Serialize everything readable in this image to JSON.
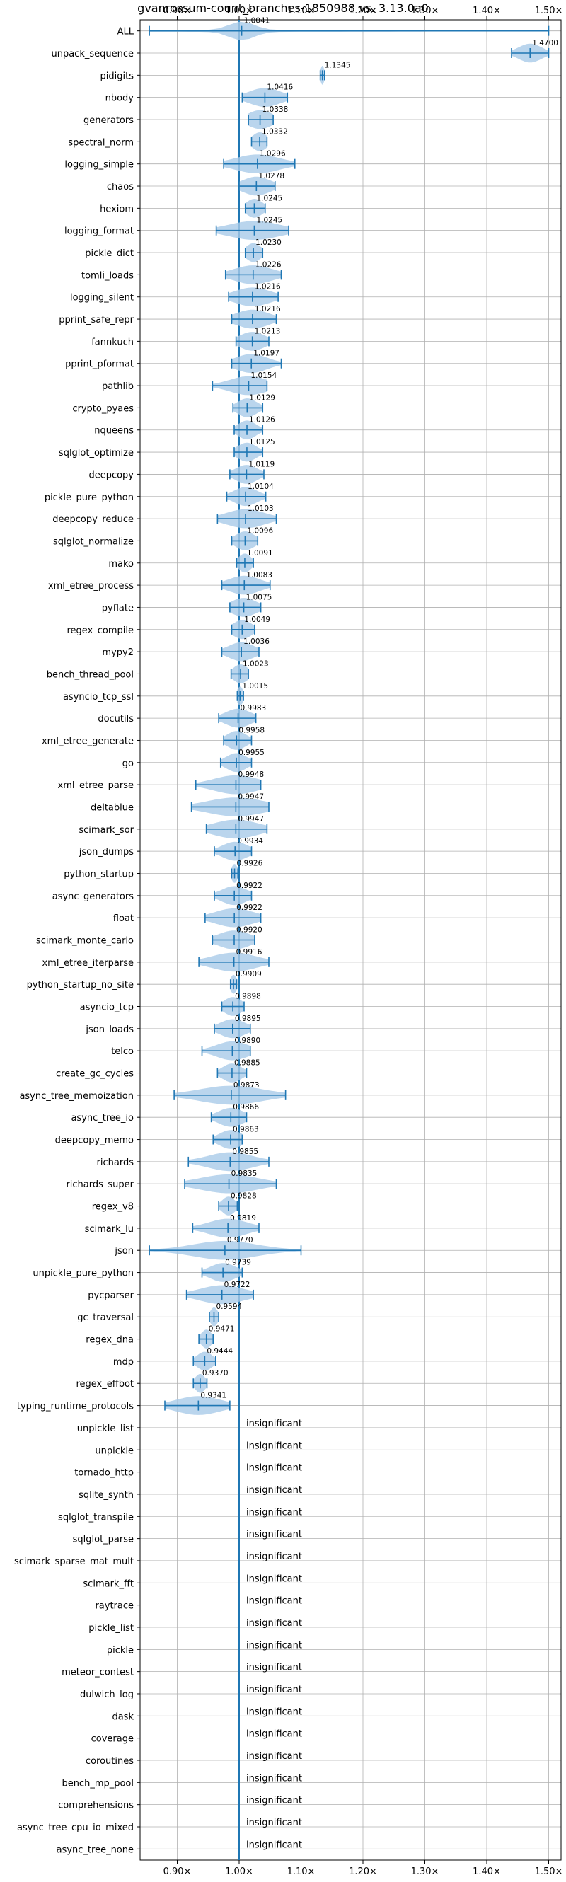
{
  "chart_data": {
    "type": "violin",
    "title": "gvanrossum-count_branches-1850988 vs. 3.13.0a0",
    "xlabel": "",
    "ylabel": "",
    "xlim": [
      0.84,
      1.52
    ],
    "xticks": [
      0.9,
      1.0,
      1.1,
      1.2,
      1.3,
      1.4,
      1.5
    ],
    "xtick_labels": [
      "0.90×",
      "1.00×",
      "1.10×",
      "1.20×",
      "1.30×",
      "1.40×",
      "1.50×"
    ],
    "reference_line": 1.0,
    "grid": true,
    "insignificant_label": "insignificant",
    "benchmarks": [
      {
        "name": "ALL",
        "mean": 1.0041,
        "label": "1.0041",
        "min": 0.855,
        "max": 1.5,
        "spread": 0.02
      },
      {
        "name": "unpack_sequence",
        "mean": 1.47,
        "label": "1.4700",
        "min": 1.44,
        "max": 1.5,
        "spread": 0.018
      },
      {
        "name": "pidigits",
        "mean": 1.1345,
        "label": "1.1345",
        "min": 1.131,
        "max": 1.138,
        "spread": 0.003
      },
      {
        "name": "nbody",
        "mean": 1.0416,
        "label": "1.0416",
        "min": 1.005,
        "max": 1.078,
        "spread": 0.025
      },
      {
        "name": "generators",
        "mean": 1.0338,
        "label": "1.0338",
        "min": 1.015,
        "max": 1.055,
        "spread": 0.02
      },
      {
        "name": "spectral_norm",
        "mean": 1.0332,
        "label": "1.0332",
        "min": 1.02,
        "max": 1.045,
        "spread": 0.012
      },
      {
        "name": "logging_simple",
        "mean": 1.0296,
        "label": "1.0296",
        "min": 0.975,
        "max": 1.09,
        "spread": 0.035
      },
      {
        "name": "chaos",
        "mean": 1.0278,
        "label": "1.0278",
        "min": 1.0,
        "max": 1.058,
        "spread": 0.022
      },
      {
        "name": "hexiom",
        "mean": 1.0245,
        "label": "1.0245",
        "min": 1.01,
        "max": 1.042,
        "spread": 0.013
      },
      {
        "name": "logging_format",
        "mean": 1.0245,
        "label": "1.0245",
        "min": 0.963,
        "max": 1.08,
        "spread": 0.04
      },
      {
        "name": "pickle_dict",
        "mean": 1.023,
        "label": "1.0230",
        "min": 1.01,
        "max": 1.038,
        "spread": 0.012
      },
      {
        "name": "tomli_loads",
        "mean": 1.0226,
        "label": "1.0226",
        "min": 0.978,
        "max": 1.068,
        "spread": 0.03
      },
      {
        "name": "logging_silent",
        "mean": 1.0216,
        "label": "1.0216",
        "min": 0.983,
        "max": 1.063,
        "spread": 0.028
      },
      {
        "name": "pprint_safe_repr",
        "mean": 1.0216,
        "label": "1.0216",
        "min": 0.988,
        "max": 1.06,
        "spread": 0.026
      },
      {
        "name": "fannkuch",
        "mean": 1.0213,
        "label": "1.0213",
        "min": 0.995,
        "max": 1.048,
        "spread": 0.02
      },
      {
        "name": "pprint_pformat",
        "mean": 1.0197,
        "label": "1.0197",
        "min": 0.988,
        "max": 1.068,
        "spread": 0.025
      },
      {
        "name": "pathlib",
        "mean": 1.0154,
        "label": "1.0154",
        "min": 0.957,
        "max": 1.045,
        "spread": 0.03
      },
      {
        "name": "crypto_pyaes",
        "mean": 1.0129,
        "label": "1.0129",
        "min": 0.99,
        "max": 1.038,
        "spread": 0.015
      },
      {
        "name": "nqueens",
        "mean": 1.0126,
        "label": "1.0126",
        "min": 0.992,
        "max": 1.038,
        "spread": 0.014
      },
      {
        "name": "sqlglot_optimize",
        "mean": 1.0125,
        "label": "1.0125",
        "min": 0.992,
        "max": 1.038,
        "spread": 0.015
      },
      {
        "name": "deepcopy",
        "mean": 1.0119,
        "label": "1.0119",
        "min": 0.985,
        "max": 1.04,
        "spread": 0.017
      },
      {
        "name": "pickle_pure_python",
        "mean": 1.0104,
        "label": "1.0104",
        "min": 0.98,
        "max": 1.043,
        "spread": 0.018
      },
      {
        "name": "deepcopy_reduce",
        "mean": 1.0103,
        "label": "1.0103",
        "min": 0.965,
        "max": 1.06,
        "spread": 0.03
      },
      {
        "name": "sqlglot_normalize",
        "mean": 1.0096,
        "label": "1.0096",
        "min": 0.988,
        "max": 1.03,
        "spread": 0.015
      },
      {
        "name": "mako",
        "mean": 1.0091,
        "label": "1.0091",
        "min": 0.996,
        "max": 1.023,
        "spread": 0.01
      },
      {
        "name": "xml_etree_process",
        "mean": 1.0083,
        "label": "1.0083",
        "min": 0.972,
        "max": 1.05,
        "spread": 0.025
      },
      {
        "name": "pyflate",
        "mean": 1.0075,
        "label": "1.0075",
        "min": 0.985,
        "max": 1.035,
        "spread": 0.02
      },
      {
        "name": "regex_compile",
        "mean": 1.0049,
        "label": "1.0049",
        "min": 0.988,
        "max": 1.025,
        "spread": 0.015
      },
      {
        "name": "mypy2",
        "mean": 1.0036,
        "label": "1.0036",
        "min": 0.972,
        "max": 1.032,
        "spread": 0.02
      },
      {
        "name": "bench_thread_pool",
        "mean": 1.0023,
        "label": "1.0023",
        "min": 0.987,
        "max": 1.015,
        "spread": 0.012
      },
      {
        "name": "asyncio_tcp_ssl",
        "mean": 1.0015,
        "label": "1.0015",
        "min": 0.997,
        "max": 1.007,
        "spread": 0.005
      },
      {
        "name": "docutils",
        "mean": 0.9983,
        "label": "0.9983",
        "min": 0.967,
        "max": 1.027,
        "spread": 0.02
      },
      {
        "name": "xml_etree_generate",
        "mean": 0.9958,
        "label": "0.9958",
        "min": 0.975,
        "max": 1.02,
        "spread": 0.015
      },
      {
        "name": "go",
        "mean": 0.9955,
        "label": "0.9955",
        "min": 0.97,
        "max": 1.02,
        "spread": 0.016
      },
      {
        "name": "xml_etree_parse",
        "mean": 0.9948,
        "label": "0.9948",
        "min": 0.93,
        "max": 1.035,
        "spread": 0.035
      },
      {
        "name": "deltablue",
        "mean": 0.9947,
        "label": "0.9947",
        "min": 0.923,
        "max": 1.048,
        "spread": 0.045
      },
      {
        "name": "scimark_sor",
        "mean": 0.9947,
        "label": "0.9947",
        "min": 0.947,
        "max": 1.045,
        "spread": 0.035
      },
      {
        "name": "json_dumps",
        "mean": 0.9934,
        "label": "0.9934",
        "min": 0.96,
        "max": 1.02,
        "spread": 0.02
      },
      {
        "name": "python_startup",
        "mean": 0.9926,
        "label": "0.9926",
        "min": 0.988,
        "max": 0.998,
        "spread": 0.005
      },
      {
        "name": "async_generators",
        "mean": 0.9922,
        "label": "0.9922",
        "min": 0.96,
        "max": 1.02,
        "spread": 0.02
      },
      {
        "name": "float",
        "mean": 0.9922,
        "label": "0.9922",
        "min": 0.945,
        "max": 1.035,
        "spread": 0.03
      },
      {
        "name": "scimark_monte_carlo",
        "mean": 0.992,
        "label": "0.9920",
        "min": 0.957,
        "max": 1.025,
        "spread": 0.025
      },
      {
        "name": "xml_etree_iterparse",
        "mean": 0.9916,
        "label": "0.9916",
        "min": 0.935,
        "max": 1.048,
        "spread": 0.035
      },
      {
        "name": "python_startup_no_site",
        "mean": 0.9909,
        "label": "0.9909",
        "min": 0.986,
        "max": 0.996,
        "spread": 0.005
      },
      {
        "name": "asyncio_tcp",
        "mean": 0.9898,
        "label": "0.9898",
        "min": 0.972,
        "max": 1.008,
        "spread": 0.014
      },
      {
        "name": "json_loads",
        "mean": 0.9895,
        "label": "0.9895",
        "min": 0.96,
        "max": 1.018,
        "spread": 0.02
      },
      {
        "name": "telco",
        "mean": 0.989,
        "label": "0.9890",
        "min": 0.94,
        "max": 1.018,
        "spread": 0.025
      },
      {
        "name": "create_gc_cycles",
        "mean": 0.9885,
        "label": "0.9885",
        "min": 0.965,
        "max": 1.012,
        "spread": 0.015
      },
      {
        "name": "async_tree_memoization",
        "mean": 0.9873,
        "label": "0.9873",
        "min": 0.895,
        "max": 1.075,
        "spread": 0.05
      },
      {
        "name": "async_tree_io",
        "mean": 0.9866,
        "label": "0.9866",
        "min": 0.955,
        "max": 1.012,
        "spread": 0.02
      },
      {
        "name": "deepcopy_memo",
        "mean": 0.9863,
        "label": "0.9863",
        "min": 0.958,
        "max": 1.005,
        "spread": 0.018
      },
      {
        "name": "richards",
        "mean": 0.9855,
        "label": "0.9855",
        "min": 0.918,
        "max": 1.048,
        "spread": 0.035
      },
      {
        "name": "richards_super",
        "mean": 0.9835,
        "label": "0.9835",
        "min": 0.912,
        "max": 1.06,
        "spread": 0.045
      },
      {
        "name": "regex_v8",
        "mean": 0.9828,
        "label": "0.9828",
        "min": 0.967,
        "max": 0.997,
        "spread": 0.01
      },
      {
        "name": "scimark_lu",
        "mean": 0.9819,
        "label": "0.9819",
        "min": 0.925,
        "max": 1.032,
        "spread": 0.03
      },
      {
        "name": "json",
        "mean": 0.977,
        "label": "0.9770",
        "min": 0.855,
        "max": 1.1,
        "spread": 0.05
      },
      {
        "name": "unpickle_pure_python",
        "mean": 0.9739,
        "label": "0.9739",
        "min": 0.94,
        "max": 1.005,
        "spread": 0.02
      },
      {
        "name": "pycparser",
        "mean": 0.9722,
        "label": "0.9722",
        "min": 0.915,
        "max": 1.023,
        "spread": 0.035
      },
      {
        "name": "gc_traversal",
        "mean": 0.9594,
        "label": "0.9594",
        "min": 0.952,
        "max": 0.967,
        "spread": 0.006
      },
      {
        "name": "regex_dna",
        "mean": 0.9471,
        "label": "0.9471",
        "min": 0.935,
        "max": 0.958,
        "spread": 0.008
      },
      {
        "name": "mdp",
        "mean": 0.9444,
        "label": "0.9444",
        "min": 0.926,
        "max": 0.962,
        "spread": 0.012
      },
      {
        "name": "regex_effbot",
        "mean": 0.937,
        "label": "0.9370",
        "min": 0.926,
        "max": 0.948,
        "spread": 0.008
      },
      {
        "name": "typing_runtime_protocols",
        "mean": 0.9341,
        "label": "0.9341",
        "min": 0.88,
        "max": 0.985,
        "spread": 0.035
      },
      {
        "name": "unpickle_list",
        "insignificant": true
      },
      {
        "name": "unpickle",
        "insignificant": true
      },
      {
        "name": "tornado_http",
        "insignificant": true
      },
      {
        "name": "sqlite_synth",
        "insignificant": true
      },
      {
        "name": "sqlglot_transpile",
        "insignificant": true
      },
      {
        "name": "sqlglot_parse",
        "insignificant": true
      },
      {
        "name": "scimark_sparse_mat_mult",
        "insignificant": true
      },
      {
        "name": "scimark_fft",
        "insignificant": true
      },
      {
        "name": "raytrace",
        "insignificant": true
      },
      {
        "name": "pickle_list",
        "insignificant": true
      },
      {
        "name": "pickle",
        "insignificant": true
      },
      {
        "name": "meteor_contest",
        "insignificant": true
      },
      {
        "name": "dulwich_log",
        "insignificant": true
      },
      {
        "name": "dask",
        "insignificant": true
      },
      {
        "name": "coverage",
        "insignificant": true
      },
      {
        "name": "coroutines",
        "insignificant": true
      },
      {
        "name": "bench_mp_pool",
        "insignificant": true
      },
      {
        "name": "comprehensions",
        "insignificant": true
      },
      {
        "name": "async_tree_cpu_io_mixed",
        "insignificant": true
      },
      {
        "name": "async_tree_none",
        "insignificant": true
      }
    ],
    "colors": {
      "violin": "#a9cbe8",
      "line": "#1f77b4",
      "grid": "#b0b0b0",
      "axis": "#000000"
    }
  }
}
